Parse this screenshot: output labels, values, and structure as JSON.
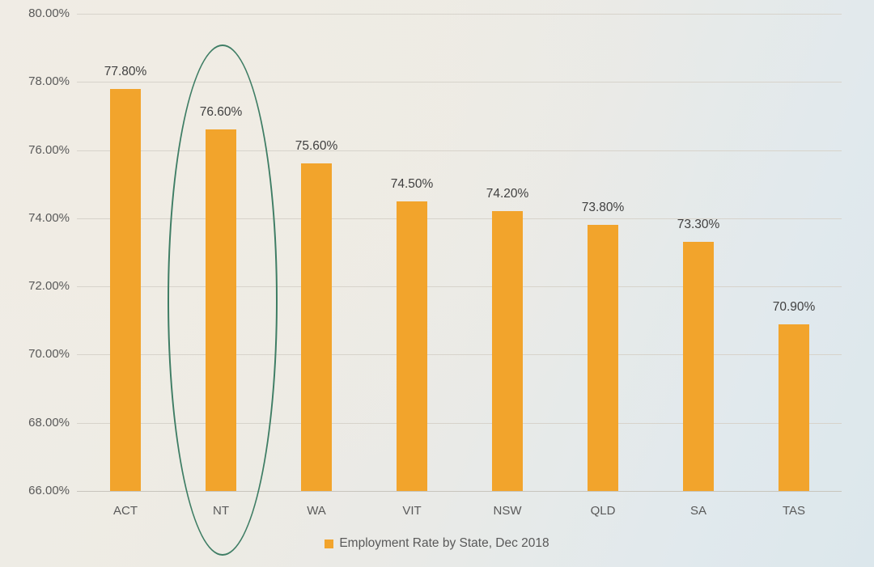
{
  "chart_data": {
    "type": "bar",
    "title": "",
    "xlabel": "",
    "ylabel": "",
    "categories": [
      "ACT",
      "NT",
      "WA",
      "VIT",
      "NSW",
      "QLD",
      "SA",
      "TAS"
    ],
    "values": [
      77.8,
      76.6,
      75.6,
      74.5,
      74.2,
      73.8,
      73.3,
      70.9
    ],
    "value_labels": [
      "77.80%",
      "76.60%",
      "75.60%",
      "74.50%",
      "74.20%",
      "73.80%",
      "73.30%",
      "70.90%"
    ],
    "ylim": [
      66,
      80
    ],
    "y_axis": {
      "min": 66,
      "max": 80,
      "step": 2,
      "ticks": [
        {
          "value": 80,
          "label": "80.00%"
        },
        {
          "value": 78,
          "label": "78.00%"
        },
        {
          "value": 76,
          "label": "76.00%"
        },
        {
          "value": 74,
          "label": "74.00%"
        },
        {
          "value": 72,
          "label": "72.00%"
        },
        {
          "value": 70,
          "label": "70.00%"
        },
        {
          "value": 68,
          "label": "68.00%"
        },
        {
          "value": 66,
          "label": "66.00%"
        }
      ]
    },
    "grid": "horizontal",
    "legend": {
      "label": "Employment Rate by State, Dec 2018",
      "position": "bottom"
    },
    "colors": {
      "bar": "#f2a42c",
      "annotation_stroke": "#3e7d64",
      "gridline": "#d7d3cb",
      "tick_text": "#595959",
      "value_text": "#404040"
    },
    "annotation": {
      "type": "ellipse",
      "target_category": "NT",
      "stroke_color": "#3e7d64"
    }
  }
}
